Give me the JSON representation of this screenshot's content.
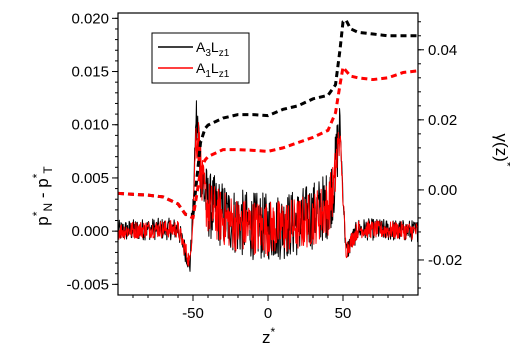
{
  "chart_data": {
    "type": "line",
    "xlabel_main": "z",
    "xlabel_sup": "*",
    "ylabel_left": {
      "p1": "p",
      "s1": "*",
      "n1": "N",
      "mid": " - p",
      "s2": "*",
      "n2": "T"
    },
    "ylabel_right": {
      "main": "γ(z)",
      "sup": "*"
    },
    "xlim": [
      -100,
      100
    ],
    "ylim_left": [
      -0.006,
      0.0205
    ],
    "ylim_right": [
      -0.03,
      0.0505
    ],
    "x_ticks": [
      -50,
      0,
      50
    ],
    "x_tick_labels": [
      "-50",
      "0",
      "50"
    ],
    "y_left_ticks": [
      -0.005,
      0,
      0.005,
      0.01,
      0.015,
      0.02
    ],
    "y_left_tick_labels": [
      "-0.005",
      "0.000",
      "0.005",
      "0.010",
      "0.015",
      "0.020"
    ],
    "y_right_ticks": [
      -0.02,
      0,
      0.02,
      0.04
    ],
    "y_right_tick_labels": [
      "-0.02",
      "0.00",
      "0.02",
      "0.04"
    ],
    "legend": {
      "placement": "top-left",
      "entries": [
        {
          "base": "A",
          "sub1": "3",
          "mid": "L",
          "sub2": "z1",
          "color": "#000000"
        },
        {
          "base": "A",
          "sub1": "1",
          "mid": "L",
          "sub2": "z1",
          "color": "#ff0000"
        }
      ]
    },
    "series": [
      {
        "color": "#000000",
        "style": "solid",
        "axis": "left",
        "noise_amp": 0.0032,
        "x": [
          -100,
          -80,
          -60,
          -52,
          -50,
          -48,
          -46,
          -44,
          -40,
          -30,
          -20,
          -10,
          0,
          10,
          20,
          30,
          40,
          44,
          46,
          48,
          50,
          52,
          60,
          80,
          100
        ],
        "y": [
          0.0,
          0.0002,
          0.0002,
          -0.0032,
          0.002,
          0.0105,
          0.0085,
          0.0045,
          0.0025,
          0.0015,
          0.0008,
          0.0005,
          0.0004,
          0.0005,
          0.0008,
          0.0015,
          0.0025,
          0.0045,
          0.0075,
          0.01,
          0.0035,
          -0.002,
          0.0002,
          0.0001,
          0.0
        ]
      },
      {
        "color": "#ff0000",
        "style": "solid",
        "axis": "left",
        "noise_amp": 0.0026,
        "x": [
          -100,
          -80,
          -60,
          -52,
          -50,
          -48,
          -46,
          -44,
          -40,
          -30,
          -20,
          -10,
          0,
          10,
          20,
          30,
          40,
          44,
          46,
          48,
          50,
          52,
          60,
          80,
          100
        ],
        "y": [
          0.0,
          0.0002,
          0.0002,
          -0.003,
          0.0015,
          0.0095,
          0.008,
          0.0042,
          0.0022,
          0.0012,
          0.0006,
          0.0004,
          0.0003,
          0.0004,
          0.0006,
          0.0012,
          0.0022,
          0.0042,
          0.007,
          0.0092,
          0.003,
          -0.0018,
          0.0002,
          0.0001,
          0.0
        ]
      },
      {
        "color": "#000000",
        "style": "dashed",
        "axis": "right",
        "x": [
          -100,
          -80,
          -70,
          -60,
          -55,
          -50,
          -47,
          -45,
          -42,
          -40,
          -35,
          -30,
          -20,
          -10,
          0,
          10,
          20,
          30,
          40,
          45,
          48,
          50,
          52,
          55,
          60,
          70,
          80,
          90,
          100
        ],
        "y": [
          -0.001,
          -0.0015,
          -0.002,
          -0.004,
          -0.007,
          -0.007,
          0.005,
          0.0135,
          0.0175,
          0.0185,
          0.0195,
          0.0205,
          0.0215,
          0.0215,
          0.0212,
          0.023,
          0.024,
          0.026,
          0.027,
          0.03,
          0.04,
          0.048,
          0.0485,
          0.046,
          0.045,
          0.0445,
          0.044,
          0.044,
          0.044
        ]
      },
      {
        "color": "#ff0000",
        "style": "dashed",
        "axis": "right",
        "x": [
          -100,
          -80,
          -70,
          -60,
          -55,
          -50,
          -47,
          -45,
          -42,
          -40,
          -35,
          -30,
          -20,
          -10,
          0,
          10,
          20,
          30,
          40,
          45,
          48,
          50,
          52,
          55,
          60,
          70,
          80,
          90,
          100
        ],
        "y": [
          -0.001,
          -0.0015,
          -0.002,
          -0.004,
          -0.007,
          -0.008,
          0.0,
          0.0055,
          0.0085,
          0.0095,
          0.0105,
          0.0115,
          0.0115,
          0.0113,
          0.011,
          0.012,
          0.0135,
          0.015,
          0.017,
          0.022,
          0.03,
          0.035,
          0.034,
          0.0325,
          0.032,
          0.0315,
          0.032,
          0.0335,
          0.034
        ]
      }
    ]
  }
}
